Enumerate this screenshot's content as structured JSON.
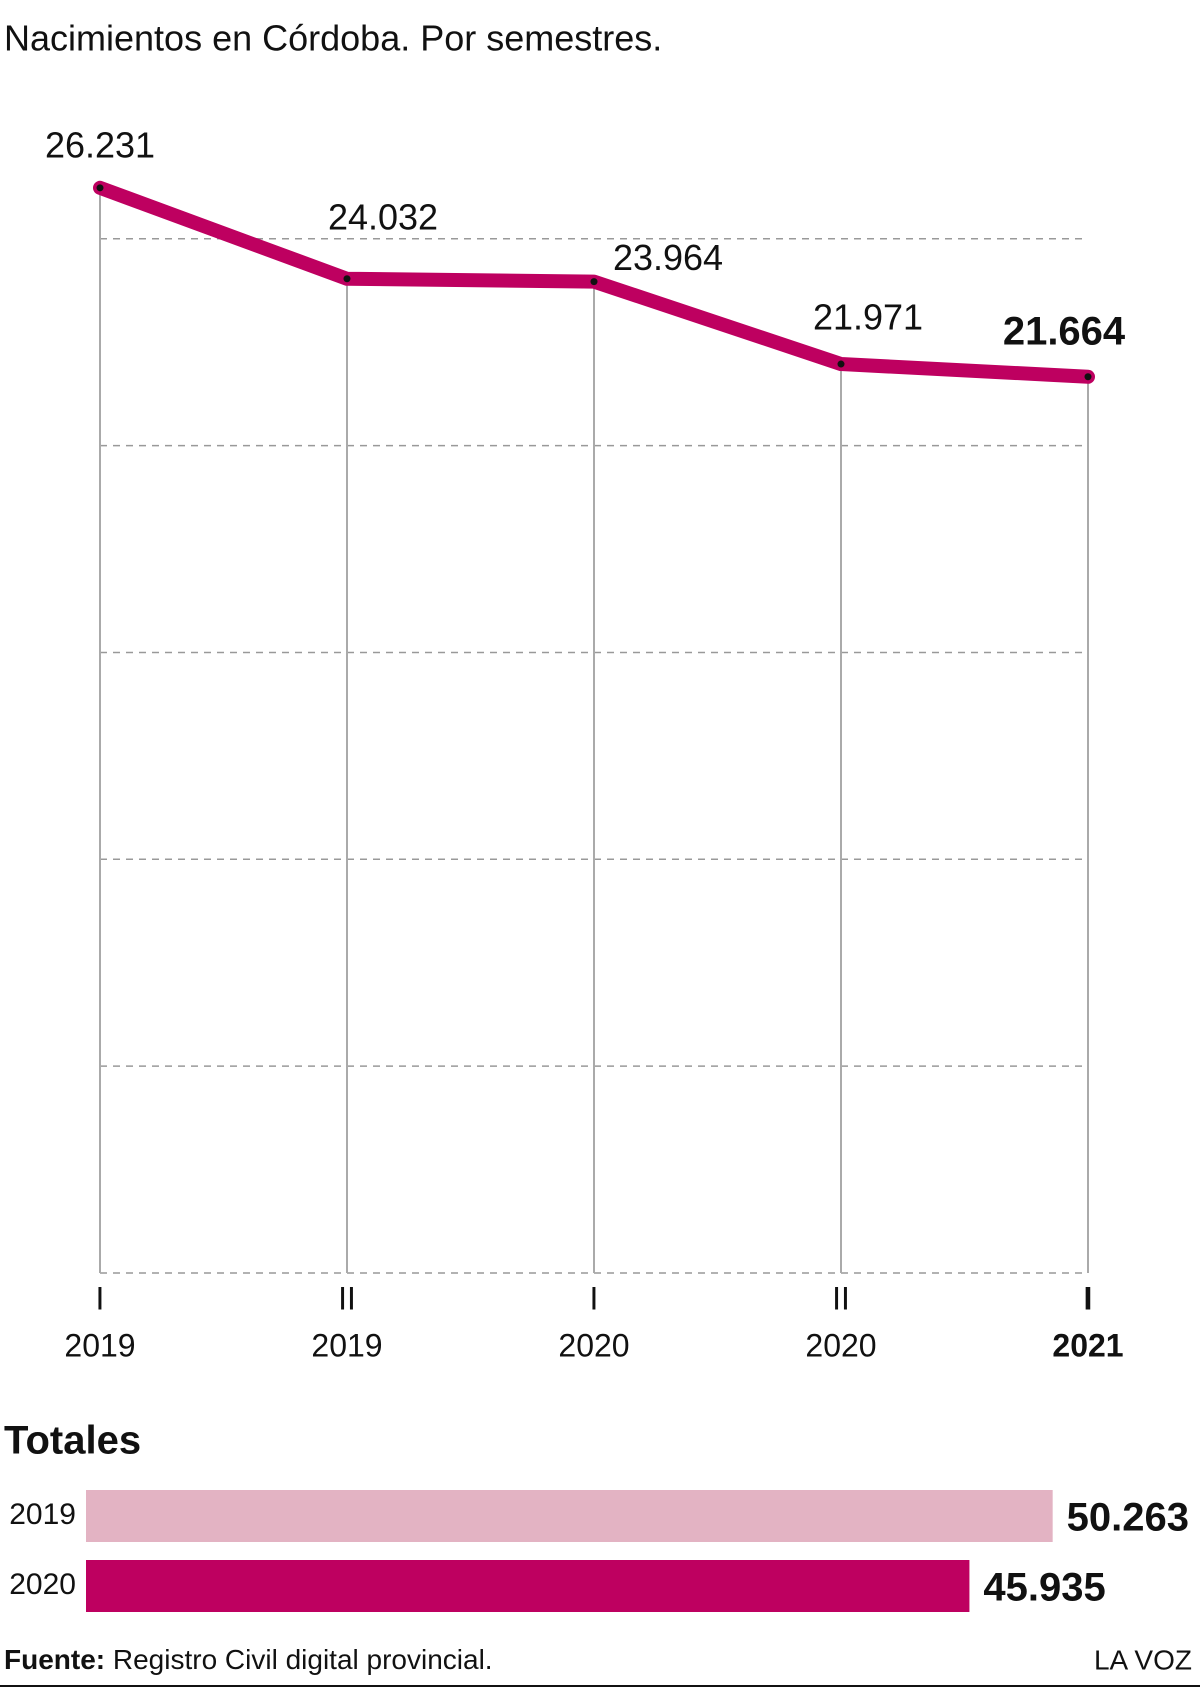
{
  "title": "Nacimientos en Córdoba. Por semestres.",
  "chart_data": [
    {
      "type": "line",
      "categories": [
        [
          "I",
          "2019"
        ],
        [
          "II",
          "2019"
        ],
        [
          "I",
          "2020"
        ],
        [
          "II",
          "2020"
        ],
        [
          "I",
          "2021"
        ]
      ],
      "values": [
        26231,
        24032,
        23964,
        21971,
        21664
      ],
      "value_labels": [
        "26.231",
        "24.032",
        "23.964",
        "21.971",
        "21.664"
      ],
      "color": "#be0060",
      "ylim": [
        0,
        27000
      ],
      "yticks": [
        0,
        5000,
        10000,
        15000,
        20000,
        25000
      ],
      "grid": true,
      "bold_last": true
    },
    {
      "type": "hbar",
      "title": "Totales",
      "categories": [
        "2019",
        "2020"
      ],
      "values": [
        50263,
        45935
      ],
      "value_labels": [
        "50.263",
        "45.935"
      ],
      "colors": [
        "#e3b3c3",
        "#be0060"
      ],
      "xlim": [
        0,
        56000
      ]
    }
  ],
  "footer": {
    "source_label": "Fuente:",
    "source": "Registro Civil digital provincial.",
    "brand": "LA VOZ"
  }
}
